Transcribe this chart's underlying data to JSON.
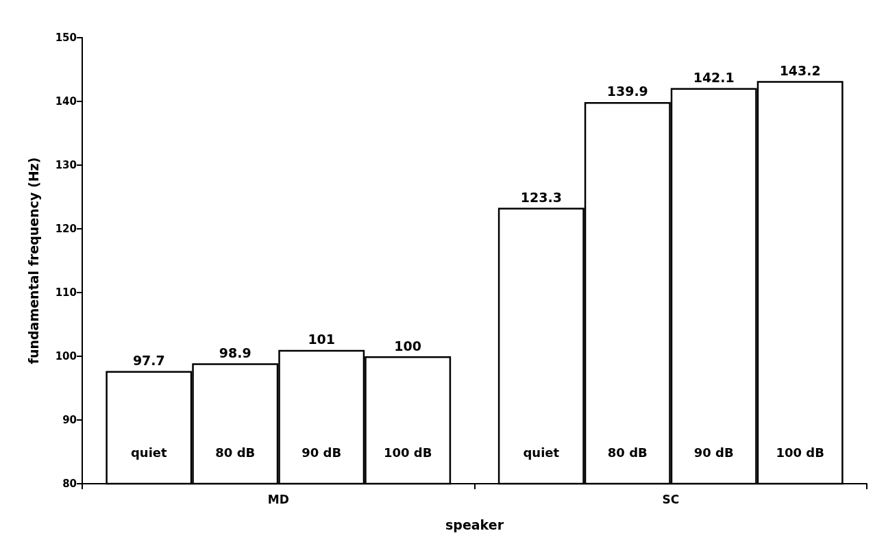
{
  "chart_data": {
    "type": "bar",
    "xlabel": "speaker",
    "ylabel": "fundamental frequency (Hz)",
    "categories": [
      "MD",
      "SC"
    ],
    "series": [
      {
        "name": "quiet",
        "color": "#ffffff",
        "values": [
          97.7,
          123.3
        ]
      },
      {
        "name": "80 dB",
        "color": "#ffffff",
        "values": [
          98.9,
          139.9
        ]
      },
      {
        "name": "90 dB",
        "color": "#ffffff",
        "values": [
          101,
          142.1
        ]
      },
      {
        "name": "100 dB",
        "color": "#ffffff",
        "values": [
          100,
          143.2
        ]
      }
    ],
    "ylim": [
      80,
      150
    ],
    "yticks": [
      80,
      90,
      100,
      110,
      120,
      130,
      140,
      150
    ],
    "data_labels": true,
    "legend": false,
    "grid": false
  }
}
